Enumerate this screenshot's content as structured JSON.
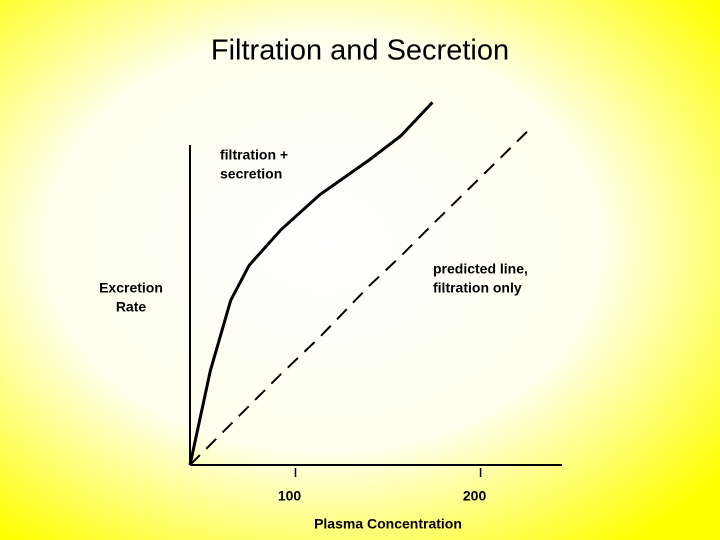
{
  "chart_data": {
    "type": "line",
    "title": "Filtration and Secretion",
    "xlabel": "Plasma Concentration",
    "ylabel": [
      "Excretion",
      "Rate"
    ],
    "x": [
      43,
      54,
      65,
      75,
      92,
      113,
      140,
      157,
      174,
      227
    ],
    "series": [
      {
        "color": "#000000",
        "dash": false,
        "values": [
          0,
          51,
          89,
          108,
          127,
          146,
          165,
          178,
          196,
          null
        ]
      },
      {
        "color": "#000000",
        "dash": true,
        "values": [
          0,
          11,
          22,
          32,
          49,
          69,
          97,
          113,
          130,
          182
        ]
      }
    ],
    "annotations": [
      {
        "lines": [
          "filtration +",
          "secretion"
        ]
      },
      {
        "lines": [
          "predicted line,",
          "filtration only"
        ]
      }
    ],
    "xlim": [
      43,
      244
    ],
    "xticks": [
      100,
      200
    ],
    "ylim": [
      0,
      200
    ],
    "yticks": [],
    "grid": false
  }
}
